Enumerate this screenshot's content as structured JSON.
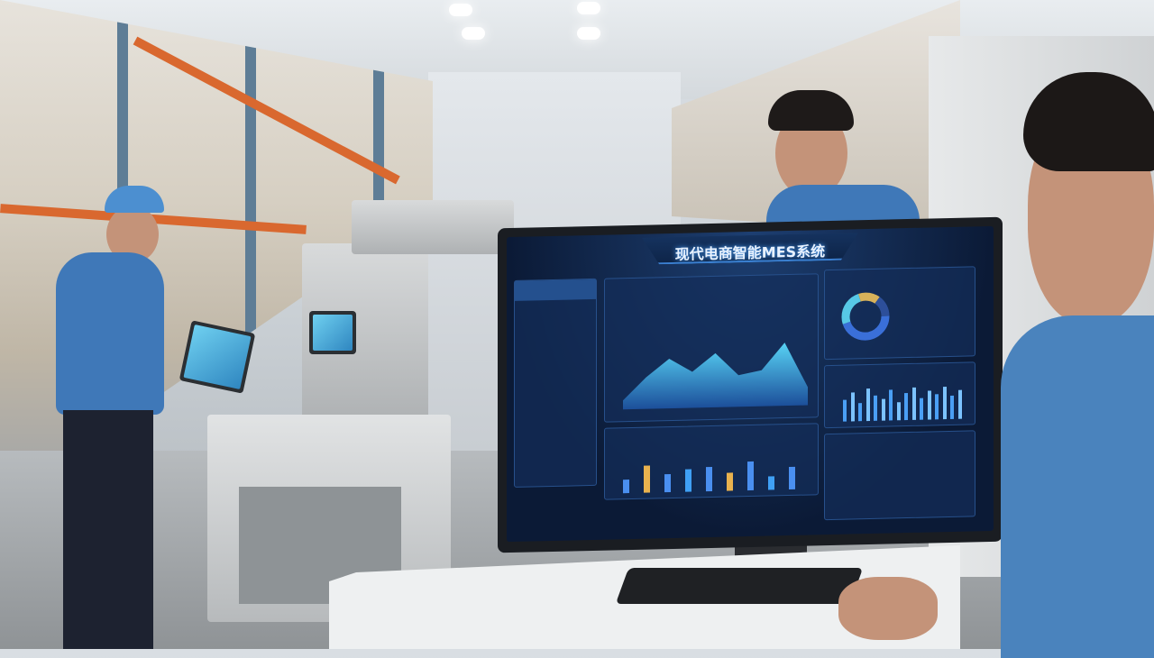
{
  "scene": "warehouse-mes-workstation",
  "monitor": {
    "title": "现代电商智能MES系统",
    "accent_color": "#4aa3ff",
    "background_color": "#0b1a36",
    "area_chart_levels": [
      0.1,
      0.35,
      0.55,
      0.4,
      0.6,
      0.35,
      0.4,
      0.7,
      0.2
    ],
    "bar_levels": [
      0.3,
      0.6,
      0.4,
      0.5,
      0.55,
      0.4,
      0.65,
      0.3,
      0.5
    ],
    "small_bar_levels": [
      0.6,
      0.8,
      0.5,
      0.9,
      0.7,
      0.6,
      0.85,
      0.5,
      0.75,
      0.9,
      0.6,
      0.8,
      0.7,
      0.9,
      0.65,
      0.8
    ],
    "donut_segments": [
      {
        "value": 0.45,
        "color": "#3a6fd8"
      },
      {
        "value": 0.25,
        "color": "#57c8e6"
      },
      {
        "value": 0.15,
        "color": "#d8b25a"
      },
      {
        "value": 0.15,
        "color": "#2d4f9a"
      }
    ]
  }
}
